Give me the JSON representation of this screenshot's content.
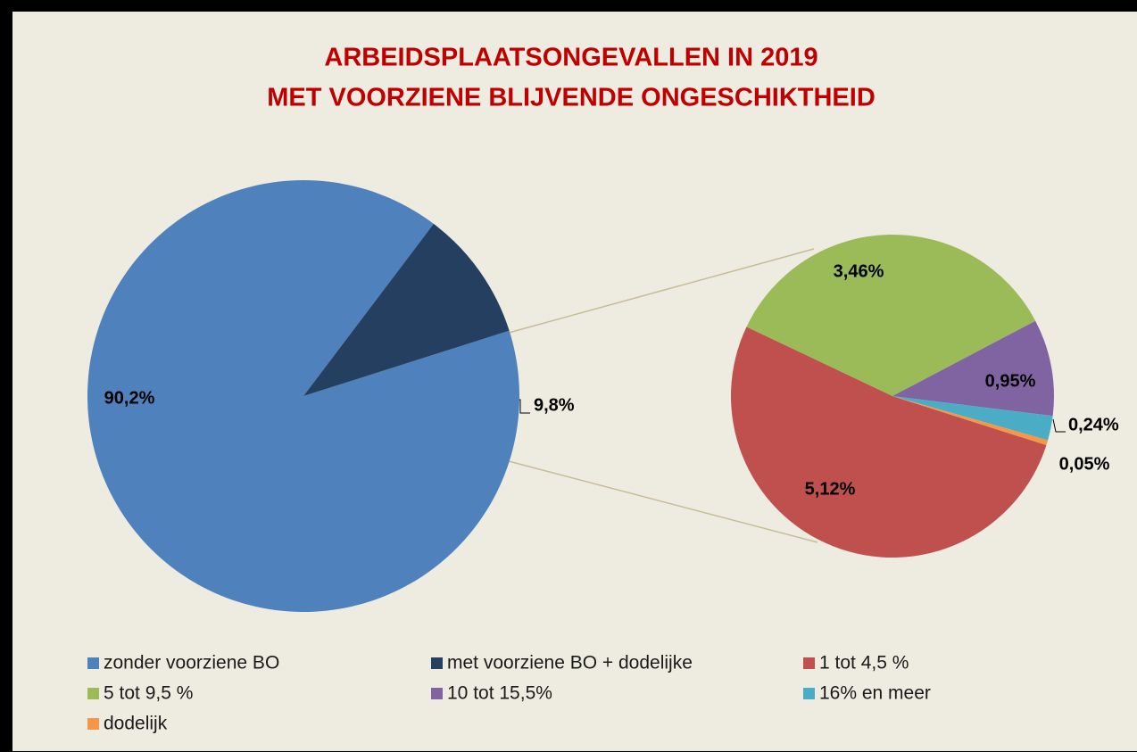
{
  "chart_data": {
    "type": "pie-of-pie",
    "title": [
      "ARBEIDSPLAATSONGEVALLEN IN 2019",
      "MET VOORZIENE  BLIJVENDE ONGESCHIKTHEID"
    ],
    "pies": [
      {
        "categories": [
          "zonder voorziene BO",
          "met voorziene BO + dodelijke"
        ],
        "values": [
          90.2,
          9.8
        ],
        "value_labels": [
          "90,2%",
          "9,8%"
        ],
        "colors": [
          "#4f81bd",
          "#243f60"
        ]
      },
      {
        "categories": [
          "1 tot 4,5 %",
          "5 tot 9,5 %",
          "10 tot 15,5%",
          "16% en meer",
          "dodelijk"
        ],
        "values": [
          5.12,
          3.46,
          0.95,
          0.24,
          0.05
        ],
        "value_labels": [
          "5,12%",
          "3,46%",
          "0,95%",
          "0,24%",
          "0,05%"
        ],
        "colors": [
          "#c0504d",
          "#9bbb59",
          "#8064a2",
          "#4bacc6",
          "#f79646"
        ]
      }
    ]
  }
}
